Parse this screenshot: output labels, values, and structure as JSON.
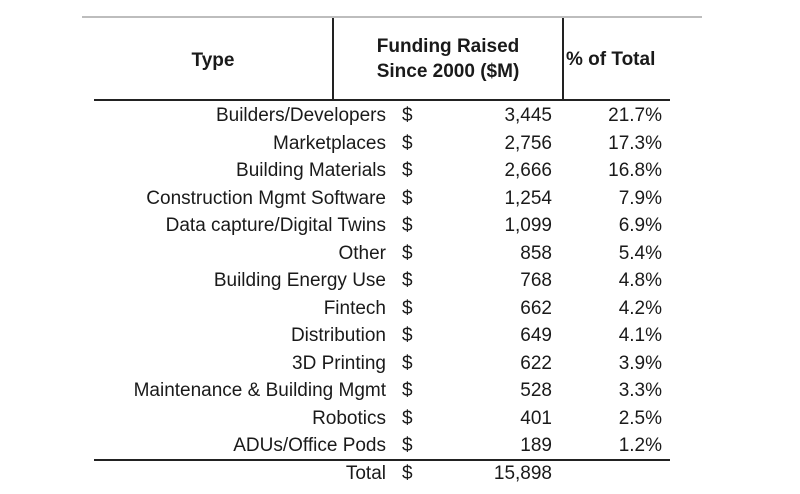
{
  "headers": {
    "type": "Type",
    "funding_line1": "Funding Raised",
    "funding_line2": "Since 2000 ($M)",
    "pct": "% of Total"
  },
  "rows": [
    {
      "type": "Builders/Developers",
      "currency": "$",
      "amount": "3,445",
      "pct": "21.7%"
    },
    {
      "type": "Marketplaces",
      "currency": "$",
      "amount": "2,756",
      "pct": "17.3%"
    },
    {
      "type": "Building Materials",
      "currency": "$",
      "amount": "2,666",
      "pct": "16.8%"
    },
    {
      "type": "Construction Mgmt Software",
      "currency": "$",
      "amount": "1,254",
      "pct": "7.9%"
    },
    {
      "type": "Data capture/Digital Twins",
      "currency": "$",
      "amount": "1,099",
      "pct": "6.9%"
    },
    {
      "type": "Other",
      "currency": "$",
      "amount": "858",
      "pct": "5.4%"
    },
    {
      "type": "Building Energy Use",
      "currency": "$",
      "amount": "768",
      "pct": "4.8%"
    },
    {
      "type": "Fintech",
      "currency": "$",
      "amount": "662",
      "pct": "4.2%"
    },
    {
      "type": "Distribution",
      "currency": "$",
      "amount": "649",
      "pct": "4.1%"
    },
    {
      "type": "3D Printing",
      "currency": "$",
      "amount": "622",
      "pct": "3.9%"
    },
    {
      "type": "Maintenance & Building Mgmt",
      "currency": "$",
      "amount": "528",
      "pct": "3.3%"
    },
    {
      "type": "Robotics",
      "currency": "$",
      "amount": "401",
      "pct": "2.5%"
    },
    {
      "type": "ADUs/Office Pods",
      "currency": "$",
      "amount": "189",
      "pct": "1.2%"
    }
  ],
  "total": {
    "label": "Total",
    "currency": "$",
    "amount": "15,898"
  }
}
